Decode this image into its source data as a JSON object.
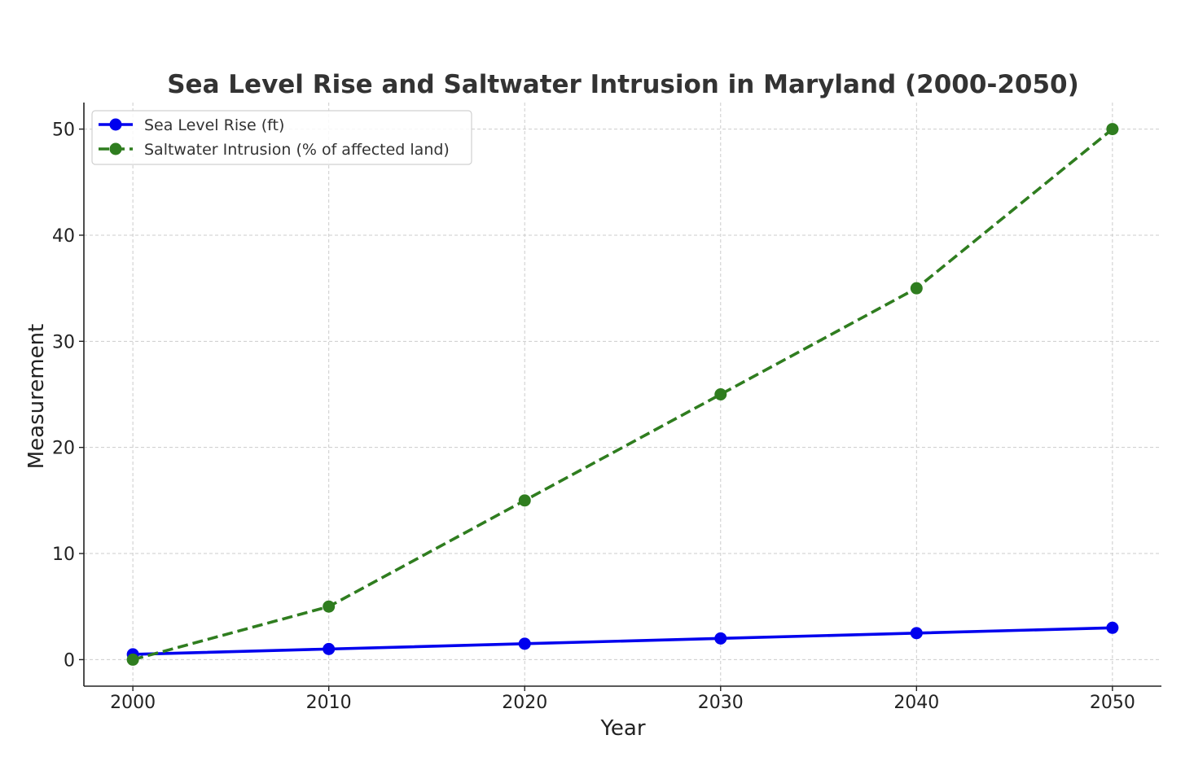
{
  "chart_data": {
    "type": "line",
    "title": "Sea Level Rise and Saltwater Intrusion in Maryland (2000-2050)",
    "xlabel": "Year",
    "ylabel": "Measurement",
    "x": [
      2000,
      2010,
      2020,
      2030,
      2040,
      2050
    ],
    "xlim": [
      1997.5,
      2052.5
    ],
    "ylim": [
      -2.5,
      52.5
    ],
    "xticks": [
      2000,
      2010,
      2020,
      2030,
      2040,
      2050
    ],
    "yticks": [
      0,
      10,
      20,
      30,
      40,
      50
    ],
    "grid": true,
    "legend_position": "upper-left",
    "series": [
      {
        "name": "Sea Level Rise (ft)",
        "values": [
          0.5,
          1.0,
          1.5,
          2.0,
          2.5,
          3.0
        ],
        "color": "#0000ee",
        "line_style": "solid",
        "marker": "circle"
      },
      {
        "name": "Saltwater Intrusion (% of affected land)",
        "values": [
          0,
          5,
          15,
          25,
          35,
          50
        ],
        "color": "#2f7d1f",
        "line_style": "dashed",
        "marker": "circle"
      }
    ]
  }
}
